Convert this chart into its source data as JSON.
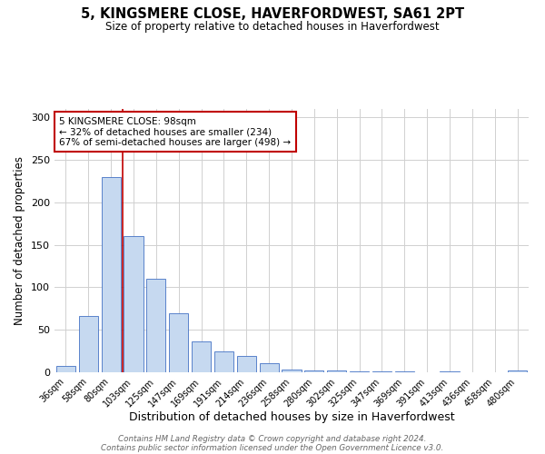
{
  "title": "5, KINGSMERE CLOSE, HAVERFORDWEST, SA61 2PT",
  "subtitle": "Size of property relative to detached houses in Haverfordwest",
  "xlabel": "Distribution of detached houses by size in Haverfordwest",
  "ylabel": "Number of detached properties",
  "footnote1": "Contains HM Land Registry data © Crown copyright and database right 2024.",
  "footnote2": "Contains public sector information licensed under the Open Government Licence v3.0.",
  "categories": [
    "36sqm",
    "58sqm",
    "80sqm",
    "103sqm",
    "125sqm",
    "147sqm",
    "169sqm",
    "191sqm",
    "214sqm",
    "236sqm",
    "258sqm",
    "280sqm",
    "302sqm",
    "325sqm",
    "347sqm",
    "369sqm",
    "391sqm",
    "413sqm",
    "436sqm",
    "458sqm",
    "480sqm"
  ],
  "values": [
    8,
    66,
    230,
    160,
    110,
    70,
    36,
    25,
    19,
    11,
    3,
    2,
    2,
    1,
    1,
    1,
    0,
    1,
    0,
    0,
    2
  ],
  "bar_color": "#c6d9f0",
  "bar_edge_color": "#4472c4",
  "property_line_x": 2.5,
  "property_line_color": "#c00000",
  "annotation_text": "5 KINGSMERE CLOSE: 98sqm\n← 32% of detached houses are smaller (234)\n67% of semi-detached houses are larger (498) →",
  "annotation_box_color": "#ffffff",
  "annotation_box_edge": "#c00000",
  "ylim": [
    0,
    310
  ],
  "yticks": [
    0,
    50,
    100,
    150,
    200,
    250,
    300
  ],
  "background_color": "#ffffff",
  "grid_color": "#d0d0d0"
}
